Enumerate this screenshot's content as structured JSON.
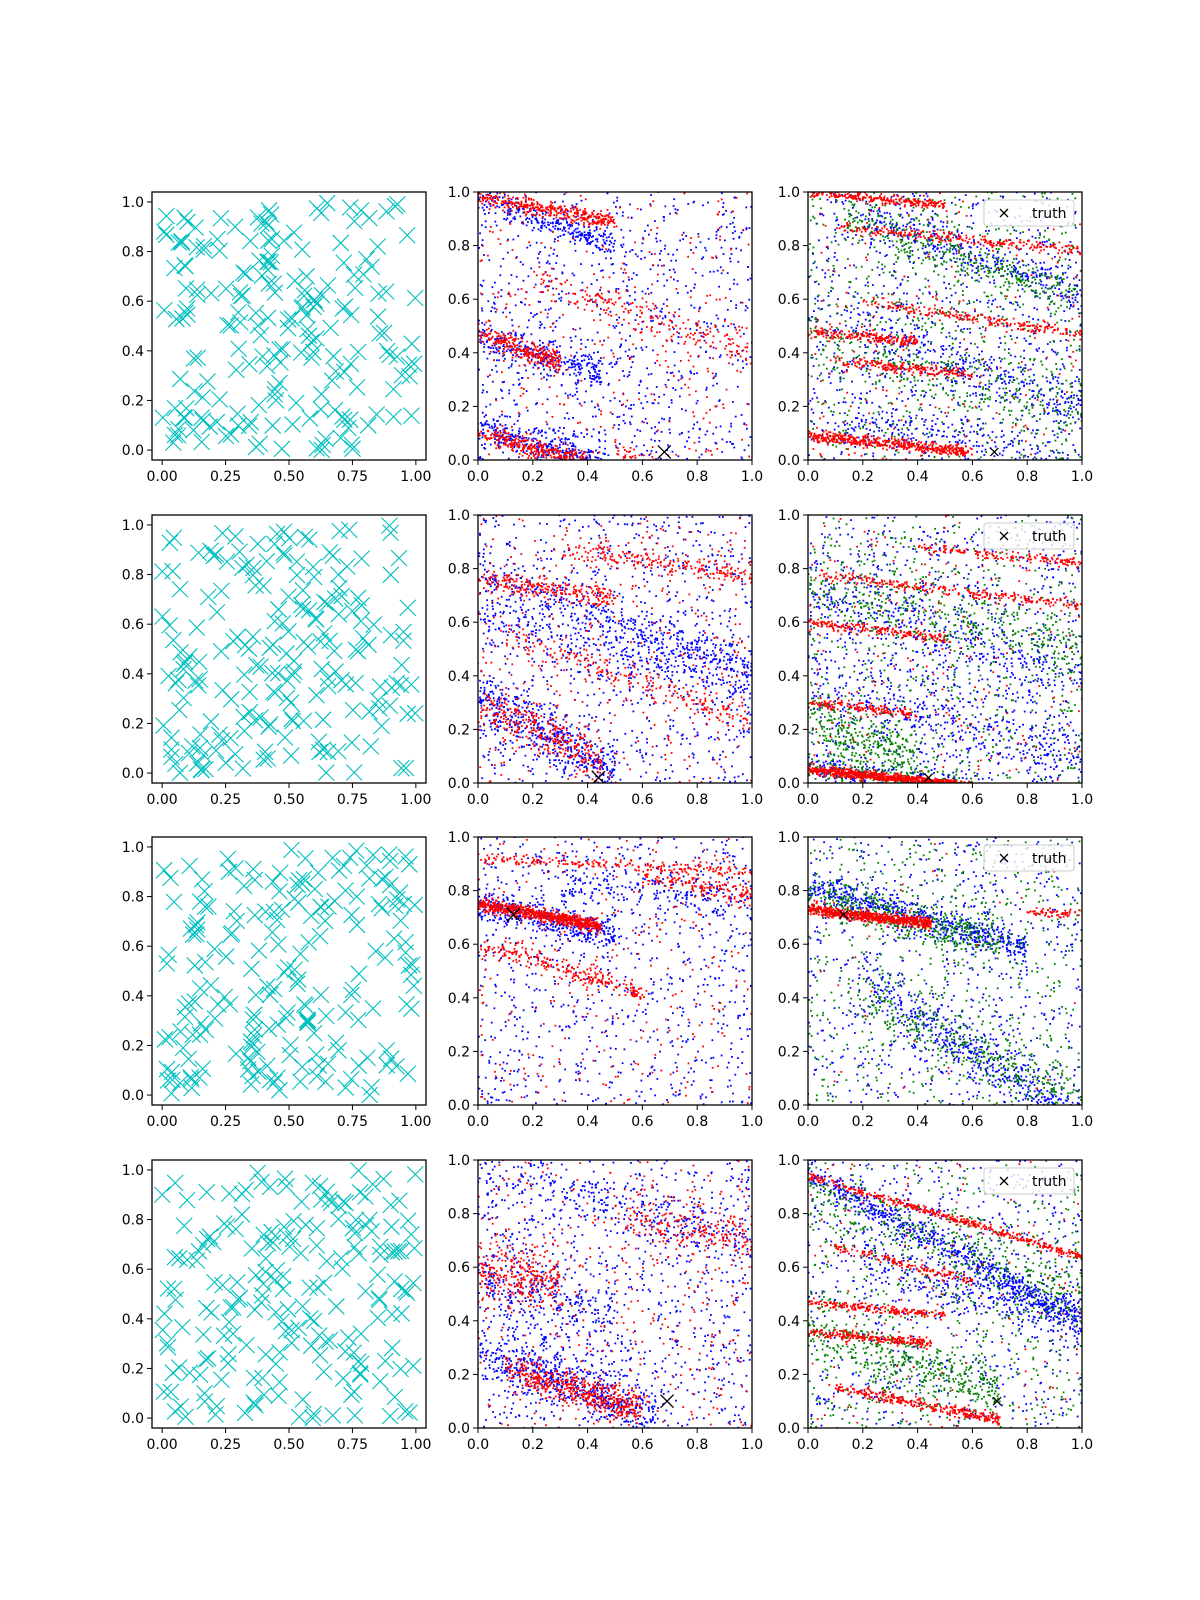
{
  "figure": {
    "rows": 4,
    "cols": 3,
    "uniform_xticks": [
      "0.00",
      "0.25",
      "0.50",
      "0.75",
      "1.00"
    ],
    "uniform_yticks": [
      "0.0",
      "0.2",
      "0.4",
      "0.6",
      "0.8",
      "1.0"
    ],
    "unit_ticks": [
      "0.0",
      "0.2",
      "0.4",
      "0.6",
      "0.8",
      "1.0"
    ],
    "legend_label": "truth",
    "colors": {
      "uniform_marker": "#00bfbf",
      "red": "#ff0000",
      "blue": "#0000ff",
      "green": "#008000",
      "truth": "#000000",
      "axes": "#000000"
    }
  },
  "chart_data": [
    {
      "type": "scatter",
      "row": 1,
      "col": 1,
      "kind": "uniform",
      "marker": "x",
      "color": "#00bfbf",
      "n_points": 200,
      "distribution": "uniform",
      "seed": 11,
      "xlim": [
        -0.04,
        1.04
      ],
      "ylim": [
        -0.04,
        1.04
      ]
    },
    {
      "type": "scatter",
      "row": 1,
      "col": 2,
      "kind": "bands",
      "xlim": [
        0,
        1
      ],
      "ylim": [
        0,
        1
      ],
      "truth": [
        0.68,
        0.03
      ],
      "seed": 21,
      "series": [
        {
          "color": "#0000ff",
          "bands": [
            [
              0.98,
              -0.35,
              260,
              0.0,
              0.5,
              0.025
            ],
            [
              0.46,
              -0.3,
              260,
              0.0,
              0.45,
              0.03
            ],
            [
              0.12,
              -0.3,
              320,
              0.0,
              0.45,
              0.03
            ]
          ],
          "uniform": 900
        },
        {
          "color": "#ff0000",
          "bands": [
            [
              0.98,
              -0.18,
              360,
              0.0,
              0.5,
              0.015
            ],
            [
              0.48,
              -0.4,
              260,
              0.0,
              0.3,
              0.02
            ],
            [
              0.1,
              -0.28,
              300,
              0.0,
              0.4,
              0.02
            ],
            [
              0.75,
              -0.35,
              220,
              0.2,
              1.0,
              0.04
            ],
            [
              0.23,
              -0.4,
              200,
              0.5,
              1.0,
              0.03
            ]
          ],
          "uniform": 300
        }
      ]
    },
    {
      "type": "scatter",
      "row": 1,
      "col": 3,
      "kind": "bands",
      "xlim": [
        0,
        1
      ],
      "ylim": [
        0,
        1
      ],
      "truth": [
        0.68,
        0.03
      ],
      "legend": true,
      "seed": 31,
      "series": [
        {
          "color": "#0000ff",
          "bands": [
            [
              0.98,
              -0.35,
              300,
              0.2,
              1.0,
              0.04
            ],
            [
              0.55,
              -0.35,
              300,
              0.1,
              1.0,
              0.05
            ],
            [
              0.18,
              -0.2,
              200,
              0.1,
              1.0,
              0.04
            ]
          ],
          "uniform": 800
        },
        {
          "color": "#008000",
          "bands": [
            [
              0.95,
              -0.35,
              300,
              0.1,
              1.0,
              0.04
            ],
            [
              0.45,
              -0.3,
              200,
              0.0,
              1.0,
              0.05
            ]
          ],
          "uniform": 700
        },
        {
          "color": "#ff0000",
          "bands": [
            [
              1.0,
              -0.1,
              250,
              0.0,
              0.5,
              0.008
            ],
            [
              0.88,
              -0.1,
              250,
              0.1,
              1.0,
              0.01
            ],
            [
              0.62,
              -0.15,
              220,
              0.2,
              1.0,
              0.01
            ],
            [
              0.48,
              -0.1,
              200,
              0.0,
              0.4,
              0.01
            ],
            [
              0.38,
              -0.1,
              200,
              0.1,
              0.6,
              0.01
            ],
            [
              0.09,
              -0.1,
              500,
              0.0,
              0.6,
              0.01
            ]
          ],
          "uniform": 200
        }
      ]
    },
    {
      "type": "scatter",
      "row": 2,
      "col": 1,
      "kind": "uniform",
      "marker": "x",
      "color": "#00bfbf",
      "n_points": 200,
      "distribution": "uniform",
      "seed": 12,
      "xlim": [
        -0.04,
        1.04
      ],
      "ylim": [
        -0.04,
        1.04
      ]
    },
    {
      "type": "scatter",
      "row": 2,
      "col": 2,
      "kind": "bands",
      "xlim": [
        0,
        1
      ],
      "ylim": [
        0,
        1
      ],
      "truth": [
        0.44,
        0.02
      ],
      "seed": 22,
      "series": [
        {
          "color": "#0000ff",
          "bands": [
            [
              0.78,
              -0.35,
              350,
              0.0,
              1.0,
              0.04
            ],
            [
              0.32,
              -0.55,
              400,
              0.0,
              0.5,
              0.05
            ],
            [
              0.62,
              -0.25,
              300,
              0.0,
              1.0,
              0.05
            ]
          ],
          "uniform": 900
        },
        {
          "color": "#ff0000",
          "bands": [
            [
              0.76,
              -0.15,
              250,
              0.0,
              0.5,
              0.02
            ],
            [
              0.92,
              -0.15,
              220,
              0.3,
              1.0,
              0.02
            ],
            [
              0.3,
              -0.5,
              300,
              0.0,
              0.45,
              0.04
            ],
            [
              0.58,
              -0.35,
              220,
              0.1,
              1.0,
              0.03
            ]
          ],
          "uniform": 350
        }
      ]
    },
    {
      "type": "scatter",
      "row": 2,
      "col": 3,
      "kind": "bands",
      "xlim": [
        0,
        1
      ],
      "ylim": [
        0,
        1
      ],
      "truth": [
        0.44,
        0.02
      ],
      "legend": true,
      "seed": 32,
      "series": [
        {
          "color": "#0000ff",
          "bands": [
            [
              0.7,
              -0.3,
              300,
              0.0,
              1.0,
              0.06
            ],
            [
              0.35,
              -0.25,
              300,
              0.0,
              1.0,
              0.06
            ],
            [
              0.06,
              -0.12,
              250,
              0.0,
              0.7,
              0.02
            ]
          ],
          "uniform": 900
        },
        {
          "color": "#008000",
          "bands": [
            [
              0.72,
              -0.2,
              300,
              0.0,
              1.0,
              0.05
            ],
            [
              0.22,
              -0.3,
              300,
              0.0,
              0.4,
              0.05
            ],
            [
              0.05,
              -0.1,
              200,
              0.0,
              0.6,
              0.02
            ]
          ],
          "uniform": 600
        },
        {
          "color": "#ff0000",
          "bands": [
            [
              0.78,
              -0.12,
              250,
              0.0,
              1.0,
              0.01
            ],
            [
              0.6,
              -0.12,
              200,
              0.0,
              0.5,
              0.01
            ],
            [
              0.3,
              -0.1,
              150,
              0.0,
              0.4,
              0.01
            ],
            [
              0.92,
              -0.1,
              150,
              0.4,
              1.0,
              0.01
            ],
            [
              0.05,
              -0.1,
              900,
              0.0,
              0.6,
              0.008
            ]
          ],
          "uniform": 200
        }
      ]
    },
    {
      "type": "scatter",
      "row": 3,
      "col": 1,
      "kind": "uniform",
      "marker": "x",
      "color": "#00bfbf",
      "n_points": 200,
      "distribution": "uniform",
      "seed": 13,
      "xlim": [
        -0.04,
        1.04
      ],
      "ylim": [
        -0.04,
        1.04
      ]
    },
    {
      "type": "scatter",
      "row": 3,
      "col": 2,
      "kind": "bands",
      "xlim": [
        0,
        1
      ],
      "ylim": [
        0,
        1
      ],
      "truth": [
        0.13,
        0.71
      ],
      "seed": 23,
      "series": [
        {
          "color": "#0000ff",
          "bands": [
            [
              0.75,
              -0.25,
              400,
              0.0,
              0.5,
              0.03
            ],
            [
              0.85,
              -0.1,
              200,
              0.3,
              1.0,
              0.04
            ]
          ],
          "uniform": 800
        },
        {
          "color": "#ff0000",
          "bands": [
            [
              0.75,
              -0.18,
              700,
              0.0,
              0.45,
              0.012
            ],
            [
              0.92,
              -0.05,
              200,
              0.0,
              1.0,
              0.01
            ],
            [
              0.6,
              -0.3,
              250,
              0.0,
              0.6,
              0.02
            ],
            [
              0.98,
              -0.2,
              150,
              0.6,
              1.0,
              0.02
            ]
          ],
          "uniform": 300
        }
      ]
    },
    {
      "type": "scatter",
      "row": 3,
      "col": 3,
      "kind": "bands",
      "xlim": [
        0,
        1
      ],
      "ylim": [
        0,
        1
      ],
      "truth": [
        0.13,
        0.71
      ],
      "legend": true,
      "seed": 33,
      "series": [
        {
          "color": "#0000ff",
          "bands": [
            [
              0.82,
              -0.3,
              600,
              0.0,
              0.8,
              0.03
            ],
            [
              0.62,
              -0.7,
              500,
              0.2,
              1.0,
              0.05
            ]
          ],
          "uniform": 700
        },
        {
          "color": "#008000",
          "bands": [
            [
              0.78,
              -0.25,
              400,
              0.0,
              0.7,
              0.04
            ],
            [
              0.5,
              -0.5,
              300,
              0.2,
              1.0,
              0.06
            ]
          ],
          "uniform": 600
        },
        {
          "color": "#ff0000",
          "bands": [
            [
              0.73,
              -0.12,
              700,
              0.0,
              0.45,
              0.01
            ],
            [
              0.72,
              0.0,
              60,
              0.8,
              1.0,
              0.008
            ]
          ],
          "uniform": 30
        }
      ]
    },
    {
      "type": "scatter",
      "row": 4,
      "col": 1,
      "kind": "uniform",
      "marker": "x",
      "color": "#00bfbf",
      "n_points": 200,
      "distribution": "uniform",
      "seed": 14,
      "xlim": [
        -0.04,
        1.04
      ],
      "ylim": [
        -0.04,
        1.04
      ]
    },
    {
      "type": "scatter",
      "row": 4,
      "col": 2,
      "kind": "bands",
      "xlim": [
        0,
        1
      ],
      "ylim": [
        0,
        1
      ],
      "truth": [
        0.69,
        0.1
      ],
      "seed": 24,
      "series": [
        {
          "color": "#0000ff",
          "bands": [
            [
              0.28,
              -0.35,
              550,
              0.0,
              0.65,
              0.05
            ],
            [
              0.95,
              -0.25,
              250,
              0.0,
              1.0,
              0.05
            ],
            [
              0.55,
              -0.3,
              250,
              0.0,
              0.5,
              0.08
            ]
          ],
          "uniform": 900
        },
        {
          "color": "#ff0000",
          "bands": [
            [
              0.25,
              -0.3,
              500,
              0.1,
              0.6,
              0.03
            ],
            [
              0.6,
              -0.2,
              250,
              0.0,
              0.3,
              0.06
            ],
            [
              0.9,
              -0.2,
              200,
              0.5,
              1.0,
              0.05
            ]
          ],
          "uniform": 400
        }
      ]
    },
    {
      "type": "scatter",
      "row": 4,
      "col": 3,
      "kind": "bands",
      "xlim": [
        0,
        1
      ],
      "ylim": [
        0,
        1
      ],
      "truth": [
        0.69,
        0.1
      ],
      "legend": true,
      "seed": 34,
      "series": [
        {
          "color": "#0000ff",
          "bands": [
            [
              0.95,
              -0.55,
              700,
              0.0,
              1.0,
              0.03
            ],
            [
              0.68,
              -0.3,
              300,
              0.2,
              1.0,
              0.05
            ]
          ],
          "uniform": 700
        },
        {
          "color": "#008000",
          "bands": [
            [
              0.35,
              -0.3,
              400,
              0.0,
              0.7,
              0.06
            ],
            [
              0.85,
              -0.35,
              300,
              0.0,
              1.0,
              0.06
            ]
          ],
          "uniform": 600
        },
        {
          "color": "#ff0000",
          "bands": [
            [
              0.94,
              -0.3,
              400,
              0.0,
              1.0,
              0.008
            ],
            [
              0.47,
              -0.1,
              200,
              0.0,
              0.5,
              0.008
            ],
            [
              0.36,
              -0.1,
              250,
              0.0,
              0.45,
              0.008
            ],
            [
              0.17,
              -0.2,
              300,
              0.1,
              0.7,
              0.01
            ],
            [
              0.7,
              -0.25,
              150,
              0.1,
              0.6,
              0.01
            ]
          ],
          "uniform": 150
        }
      ]
    }
  ]
}
